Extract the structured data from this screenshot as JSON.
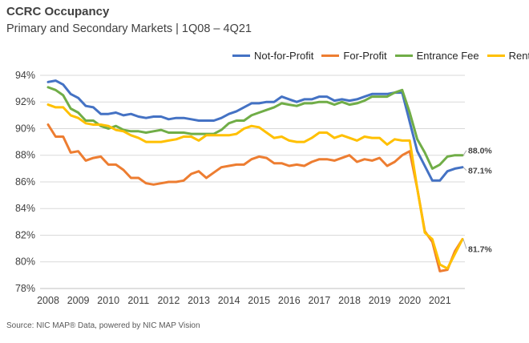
{
  "title": "CCRC Occupancy",
  "subtitle": "Primary and Secondary Markets | 1Q08 – 4Q21",
  "source": "Source: NIC MAP® Data, powered by NIC MAP Vision",
  "chart_data": {
    "type": "line",
    "x_start_year": 2008,
    "quarters_per_year": 4,
    "x_ticks": [
      "2008",
      "2009",
      "2010",
      "2011",
      "2012",
      "2013",
      "2014",
      "2015",
      "2016",
      "2017",
      "2018",
      "2019",
      "2020",
      "2021"
    ],
    "y_ticks": [
      "78%",
      "80%",
      "82%",
      "84%",
      "86%",
      "88%",
      "90%",
      "92%",
      "94%"
    ],
    "ylim": [
      78,
      94.6
    ],
    "grid": true,
    "legend": "top-right",
    "series": [
      {
        "name": "Not-for-Profit",
        "color": "#4472C4",
        "end_label": "87.1%",
        "values": [
          93.5,
          93.6,
          93.3,
          92.6,
          92.3,
          91.7,
          91.6,
          91.1,
          91.1,
          91.2,
          91.0,
          91.1,
          90.9,
          90.8,
          90.9,
          90.9,
          90.7,
          90.8,
          90.8,
          90.7,
          90.6,
          90.6,
          90.6,
          90.8,
          91.1,
          91.3,
          91.6,
          91.9,
          91.9,
          92.0,
          92.0,
          92.4,
          92.2,
          92.0,
          92.2,
          92.2,
          92.4,
          92.4,
          92.1,
          92.2,
          92.1,
          92.2,
          92.4,
          92.6,
          92.6,
          92.6,
          92.7,
          92.7,
          90.5,
          88.3,
          87.2,
          86.1,
          86.1,
          86.8,
          87.0,
          87.1
        ]
      },
      {
        "name": "For-Profit",
        "color": "#ED7D31",
        "end_label": "",
        "values": [
          90.3,
          89.4,
          89.4,
          88.2,
          88.3,
          87.6,
          87.8,
          87.9,
          87.3,
          87.3,
          86.9,
          86.3,
          86.3,
          85.9,
          85.8,
          85.9,
          86.0,
          86.0,
          86.1,
          86.6,
          86.8,
          86.3,
          86.7,
          87.1,
          87.2,
          87.3,
          87.3,
          87.7,
          87.9,
          87.8,
          87.4,
          87.4,
          87.2,
          87.3,
          87.2,
          87.5,
          87.7,
          87.7,
          87.6,
          87.8,
          88.0,
          87.5,
          87.7,
          87.6,
          87.8,
          87.2,
          87.5,
          88.0,
          88.3,
          85.5,
          82.3,
          81.5,
          79.3,
          79.4,
          80.8,
          81.7
        ]
      },
      {
        "name": "Entrance Fee",
        "color": "#70AD47",
        "end_label": "88.0%",
        "values": [
          93.1,
          92.9,
          92.5,
          91.5,
          91.2,
          90.6,
          90.6,
          90.2,
          90.0,
          90.2,
          89.9,
          89.8,
          89.8,
          89.7,
          89.8,
          89.9,
          89.7,
          89.7,
          89.7,
          89.6,
          89.6,
          89.6,
          89.6,
          89.9,
          90.4,
          90.6,
          90.6,
          91.0,
          91.2,
          91.4,
          91.6,
          91.9,
          91.8,
          91.7,
          91.9,
          91.9,
          92.0,
          92.0,
          91.8,
          92.0,
          91.8,
          91.9,
          92.1,
          92.4,
          92.4,
          92.4,
          92.7,
          92.9,
          91.2,
          89.2,
          88.2,
          87.0,
          87.3,
          87.9,
          88.0,
          88.0
        ]
      },
      {
        "name": "Rental",
        "color": "#FFC000",
        "end_label": "81.7%",
        "values": [
          91.8,
          91.6,
          91.6,
          91.0,
          90.8,
          90.4,
          90.3,
          90.3,
          90.2,
          89.9,
          89.8,
          89.5,
          89.3,
          89.0,
          89.0,
          89.0,
          89.1,
          89.2,
          89.4,
          89.4,
          89.1,
          89.5,
          89.5,
          89.5,
          89.5,
          89.6,
          90.0,
          90.2,
          90.1,
          89.7,
          89.3,
          89.4,
          89.1,
          89.0,
          89.0,
          89.3,
          89.7,
          89.7,
          89.3,
          89.5,
          89.3,
          89.1,
          89.4,
          89.3,
          89.3,
          88.8,
          89.2,
          89.1,
          89.1,
          85.5,
          82.2,
          81.7,
          79.8,
          79.5,
          80.6,
          81.7
        ]
      }
    ]
  }
}
